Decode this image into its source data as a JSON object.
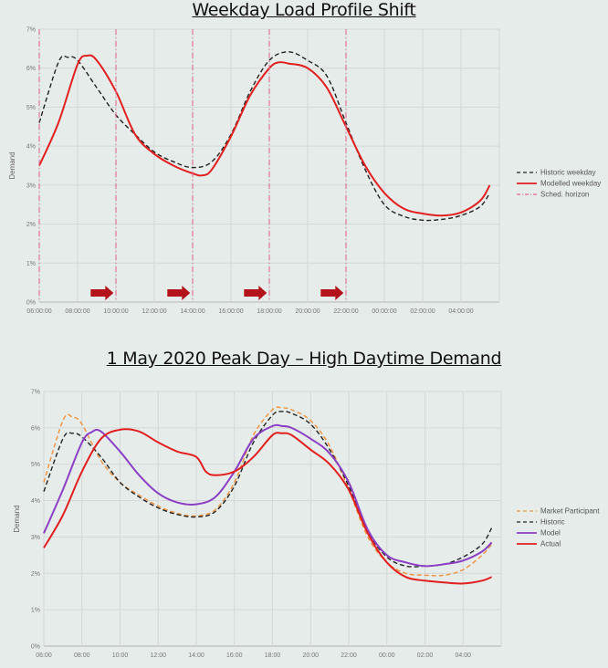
{
  "chart_data": [
    {
      "type": "line",
      "title": "Weekday Load Profile Shift",
      "ylabel": "Demand",
      "ylim": [
        0,
        7
      ],
      "y_ticks": [
        "0%",
        "1%",
        "2%",
        "3%",
        "4%",
        "5%",
        "6%",
        "7%"
      ],
      "x_ticks": [
        "06:00:00",
        "08:00:00",
        "10:00:00",
        "12:00:00",
        "14:00:00",
        "16:00:00",
        "18:00:00",
        "20:00:00",
        "22:00:00",
        "00:00:00",
        "02:00:00",
        "04:00:00"
      ],
      "x_hours": [
        6,
        30
      ],
      "grid": true,
      "legend_position": "right",
      "series": [
        {
          "name": "Historic weekday",
          "color": "#222222",
          "dash": "dashed",
          "x": [
            6,
            7,
            7.5,
            8,
            9,
            10,
            11,
            12,
            13,
            14,
            15,
            16,
            17,
            18,
            19,
            20,
            21,
            22,
            23,
            24,
            25,
            26,
            27,
            28,
            29,
            29.5
          ],
          "y": [
            4.6,
            6.15,
            6.28,
            6.2,
            5.5,
            4.8,
            4.3,
            3.85,
            3.6,
            3.45,
            3.6,
            4.3,
            5.4,
            6.2,
            6.42,
            6.2,
            5.8,
            4.6,
            3.4,
            2.5,
            2.2,
            2.1,
            2.12,
            2.22,
            2.45,
            2.8
          ]
        },
        {
          "name": "Modelled weekday",
          "color": "#e21f1f",
          "dash": "solid",
          "x": [
            6,
            7,
            8,
            8.5,
            9,
            10,
            11,
            12,
            13,
            14,
            14.5,
            15,
            16,
            17,
            18,
            18.5,
            19,
            20,
            21,
            22,
            23,
            24,
            25,
            26,
            27,
            28,
            29,
            29.5
          ],
          "y": [
            3.5,
            4.6,
            6.1,
            6.32,
            6.2,
            5.4,
            4.3,
            3.8,
            3.5,
            3.3,
            3.25,
            3.4,
            4.25,
            5.3,
            6.0,
            6.15,
            6.12,
            6.0,
            5.5,
            4.5,
            3.5,
            2.8,
            2.4,
            2.27,
            2.22,
            2.3,
            2.6,
            3.0
          ]
        },
        {
          "name": "Sched. horizon",
          "color": "#e06a8c",
          "dash": "dash-dot",
          "x_vlines": [
            6,
            10,
            14,
            18,
            22
          ]
        }
      ],
      "arrows_at_hours": [
        9.3,
        13.3,
        17.3,
        21.3
      ]
    },
    {
      "type": "line",
      "title": "1 May 2020 Peak Day – High Daytime Demand",
      "ylabel": "Demand",
      "ylim": [
        0,
        7
      ],
      "y_ticks": [
        "0%",
        "1%",
        "2%",
        "3%",
        "4%",
        "5%",
        "6%",
        "7%"
      ],
      "x_ticks": [
        "06:00",
        "08:00",
        "10:00",
        "12:00",
        "14:00",
        "16:00",
        "18:00",
        "20:00",
        "22:00",
        "00:00",
        "02:00",
        "04:00"
      ],
      "x_hours": [
        6,
        30
      ],
      "grid": true,
      "legend_position": "right",
      "series": [
        {
          "name": "Market Participant",
          "color": "#f0923a",
          "dash": "dashed",
          "x": [
            6,
            7,
            7.5,
            8,
            9,
            10,
            11,
            12,
            13,
            14,
            15,
            16,
            17,
            18,
            18.5,
            19,
            20,
            21,
            22,
            23,
            24,
            25,
            26,
            27,
            28,
            29,
            29.5
          ],
          "y": [
            4.5,
            6.2,
            6.3,
            6.1,
            5.1,
            4.5,
            4.15,
            3.85,
            3.65,
            3.58,
            3.75,
            4.5,
            5.8,
            6.5,
            6.55,
            6.5,
            6.2,
            5.5,
            4.3,
            3.0,
            2.3,
            2.0,
            1.95,
            1.95,
            2.1,
            2.5,
            2.8
          ]
        },
        {
          "name": "Historic",
          "color": "#222222",
          "dash": "dashed",
          "x": [
            6,
            7,
            7.5,
            8,
            9,
            10,
            11,
            12,
            13,
            14,
            15,
            16,
            17,
            18,
            18.5,
            19,
            20,
            21,
            22,
            23,
            24,
            25,
            26,
            27,
            28,
            29,
            29.5
          ],
          "y": [
            4.25,
            5.7,
            5.85,
            5.75,
            5.2,
            4.5,
            4.1,
            3.8,
            3.62,
            3.55,
            3.7,
            4.4,
            5.6,
            6.35,
            6.45,
            6.4,
            6.1,
            5.4,
            4.4,
            3.15,
            2.45,
            2.2,
            2.2,
            2.25,
            2.45,
            2.8,
            3.25
          ]
        },
        {
          "name": "Model",
          "color": "#8a3fc4",
          "dash": "solid",
          "x": [
            6,
            7,
            8,
            8.5,
            9,
            10,
            11,
            12,
            13,
            14,
            15,
            16,
            17,
            18,
            18.5,
            19,
            20,
            21,
            22,
            23,
            24,
            25,
            26,
            27,
            28,
            29,
            29.5
          ],
          "y": [
            3.1,
            4.3,
            5.6,
            5.88,
            5.9,
            5.35,
            4.7,
            4.2,
            3.95,
            3.9,
            4.1,
            4.8,
            5.7,
            6.05,
            6.05,
            6.0,
            5.7,
            5.3,
            4.5,
            3.2,
            2.5,
            2.3,
            2.2,
            2.25,
            2.35,
            2.6,
            2.85
          ]
        },
        {
          "name": "Actual",
          "color": "#e21f1f",
          "dash": "solid",
          "x": [
            6,
            7,
            8,
            9,
            10,
            11,
            12,
            13,
            14,
            14.5,
            15,
            16,
            17,
            18,
            18.5,
            19,
            20,
            21,
            22,
            23,
            24,
            25,
            26,
            27,
            28,
            29,
            29.5
          ],
          "y": [
            2.7,
            3.6,
            4.8,
            5.7,
            5.95,
            5.9,
            5.6,
            5.35,
            5.2,
            4.8,
            4.7,
            4.8,
            5.2,
            5.8,
            5.85,
            5.8,
            5.4,
            5.0,
            4.3,
            3.1,
            2.3,
            1.9,
            1.8,
            1.75,
            1.72,
            1.8,
            1.9
          ]
        }
      ]
    }
  ]
}
